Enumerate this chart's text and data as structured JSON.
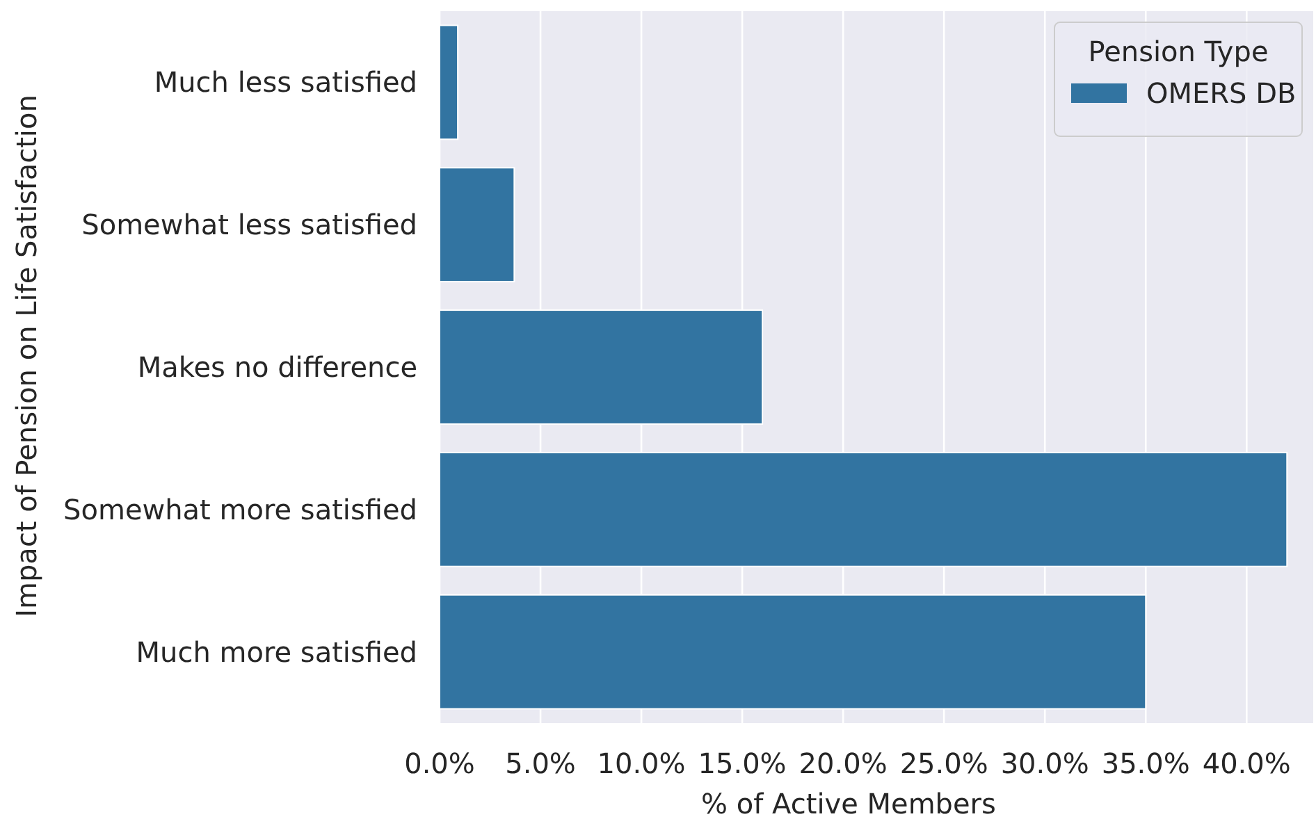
{
  "chart_data": {
    "type": "bar",
    "orientation": "horizontal",
    "xlabel": "% of Active Members",
    "ylabel": "Impact of Pension on Life Satisfaction",
    "legend_title": "Pension Type",
    "categories": [
      "Much less satisfied",
      "Somewhat less satisfied",
      "Makes no difference",
      "Somewhat more satisfied",
      "Much more satisfied"
    ],
    "series": [
      {
        "name": "OMERS DB",
        "color": "#3274a1",
        "values": [
          0.9,
          3.7,
          16.0,
          42.0,
          35.0
        ]
      }
    ],
    "xlim": [
      0,
      43.3
    ],
    "xticks": [
      {
        "value": 0,
        "label": "0.0%"
      },
      {
        "value": 5,
        "label": "5.0%"
      },
      {
        "value": 10,
        "label": "10.0%"
      },
      {
        "value": 15,
        "label": "15.0%"
      },
      {
        "value": 20,
        "label": "20.0%"
      },
      {
        "value": 25,
        "label": "25.0%"
      },
      {
        "value": 30,
        "label": "30.0%"
      },
      {
        "value": 35,
        "label": "35.0%"
      },
      {
        "value": 40,
        "label": "40.0%"
      }
    ],
    "grid": "x",
    "legend": "top right"
  }
}
